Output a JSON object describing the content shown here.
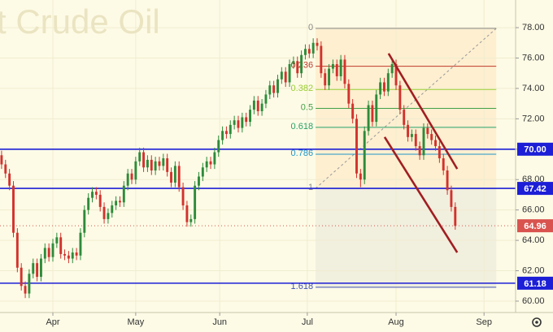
{
  "chart_data": {
    "type": "candlestick",
    "title": "t Crude Oil",
    "colors": {
      "up": "#2e8b3a",
      "down": "#d2322d",
      "level": "#1c1fd6",
      "trend": "#a01e22",
      "price": "#d9534f"
    },
    "open": [
      69.6,
      69.0,
      68.4,
      67.6,
      64.5,
      62.2,
      61.0,
      60.5,
      61.8,
      62.5,
      61.6,
      62.8,
      63.5,
      62.9,
      63.8,
      64.2,
      63.1,
      63.0,
      62.8,
      63.2,
      63.0,
      64.5,
      66.0,
      66.8,
      67.2,
      67.0,
      66.2,
      65.4,
      65.8,
      66.3,
      66.6,
      66.5,
      67.6,
      68.4,
      68.0,
      69.2,
      69.8,
      68.8,
      69.3,
      68.6,
      69.2,
      68.9,
      69.4,
      68.5,
      67.8,
      68.9,
      67.5,
      66.3,
      65.2,
      65.4,
      67.6,
      68.2,
      68.8,
      69.2,
      69.0,
      69.8,
      70.6,
      71.2,
      71.0,
      71.6,
      71.9,
      71.4,
      72.1,
      71.8,
      72.6,
      73.2,
      72.5,
      73.0,
      73.6,
      74.2,
      73.7,
      74.6,
      75.1,
      74.4,
      75.6,
      75.8,
      75.0,
      76.2,
      76.6,
      76.3,
      77.0,
      76.8,
      75.0,
      74.2,
      75.3,
      75.6,
      74.8,
      75.9,
      74.3,
      73.0,
      72.0,
      68.4,
      68.0,
      71.2,
      72.9,
      71.8,
      73.6,
      74.4,
      73.8,
      75.0,
      75.6,
      74.2,
      72.6,
      71.6,
      70.8,
      71.0,
      70.2,
      69.6,
      71.4,
      71.0,
      70.6,
      70.2,
      69.4,
      68.6,
      67.3,
      66.2
    ],
    "high": [
      69.9,
      69.3,
      68.7,
      67.9,
      64.8,
      62.5,
      61.3,
      62.1,
      62.8,
      62.8,
      63.1,
      63.8,
      63.8,
      64.1,
      64.5,
      64.5,
      63.4,
      63.3,
      63.5,
      63.5,
      64.8,
      66.3,
      67.1,
      67.5,
      67.5,
      67.3,
      66.5,
      66.1,
      66.6,
      66.9,
      66.9,
      67.9,
      68.7,
      68.7,
      69.5,
      70.1,
      70.1,
      69.6,
      69.6,
      69.5,
      69.5,
      69.7,
      69.7,
      68.8,
      69.2,
      69.2,
      67.8,
      66.6,
      65.7,
      67.9,
      68.5,
      69.1,
      69.5,
      69.5,
      70.1,
      70.9,
      71.5,
      71.5,
      71.9,
      72.2,
      72.2,
      72.4,
      72.4,
      72.9,
      73.5,
      73.5,
      73.3,
      73.9,
      74.5,
      74.5,
      74.9,
      75.4,
      75.4,
      75.9,
      76.1,
      76.1,
      76.5,
      76.9,
      76.9,
      77.3,
      77.3,
      77.1,
      75.3,
      75.6,
      75.9,
      75.9,
      76.2,
      76.2,
      74.6,
      73.3,
      72.3,
      68.7,
      71.5,
      73.2,
      73.2,
      73.9,
      74.7,
      74.7,
      75.3,
      75.9,
      75.9,
      74.5,
      72.9,
      71.9,
      71.3,
      71.3,
      70.5,
      71.7,
      71.7,
      71.3,
      70.9,
      70.5,
      69.7,
      68.9,
      67.6,
      66.5
    ],
    "low": [
      68.7,
      68.1,
      67.3,
      64.2,
      61.9,
      60.7,
      60.2,
      60.2,
      61.5,
      61.3,
      61.3,
      62.5,
      62.6,
      62.6,
      63.5,
      62.8,
      62.7,
      62.5,
      62.5,
      62.7,
      62.7,
      64.2,
      65.7,
      66.5,
      66.7,
      65.9,
      65.1,
      65.1,
      65.5,
      66.0,
      66.2,
      66.2,
      67.3,
      67.7,
      67.7,
      68.9,
      68.5,
      68.5,
      68.3,
      68.3,
      68.6,
      68.6,
      68.2,
      67.5,
      67.5,
      67.2,
      66.0,
      64.9,
      64.9,
      65.1,
      67.3,
      67.9,
      68.5,
      68.7,
      68.7,
      69.5,
      70.3,
      70.7,
      70.7,
      71.3,
      71.1,
      71.1,
      71.5,
      71.5,
      72.3,
      72.2,
      72.2,
      72.7,
      73.3,
      73.4,
      73.4,
      74.3,
      74.1,
      74.1,
      75.3,
      74.7,
      74.7,
      75.9,
      76.0,
      76.0,
      76.5,
      74.7,
      73.9,
      73.9,
      75.0,
      74.5,
      74.5,
      74.0,
      72.7,
      71.7,
      68.1,
      67.5,
      67.7,
      70.9,
      71.5,
      71.5,
      73.3,
      73.5,
      73.5,
      74.7,
      73.9,
      72.3,
      71.3,
      70.5,
      70.5,
      69.9,
      69.3,
      69.3,
      70.7,
      70.3,
      69.9,
      69.1,
      68.3,
      67.0,
      65.9,
      64.7
    ],
    "close": [
      69.0,
      68.4,
      67.6,
      64.5,
      62.2,
      61.0,
      60.5,
      61.8,
      62.5,
      61.6,
      62.8,
      63.5,
      62.9,
      63.8,
      64.2,
      63.1,
      63.0,
      62.8,
      63.2,
      63.0,
      64.5,
      66.0,
      66.8,
      67.2,
      67.0,
      66.2,
      65.4,
      65.8,
      66.3,
      66.6,
      66.5,
      67.6,
      68.4,
      68.0,
      69.2,
      69.8,
      68.8,
      69.3,
      68.6,
      69.2,
      68.9,
      69.4,
      68.5,
      67.8,
      68.9,
      67.5,
      66.3,
      65.2,
      65.4,
      67.6,
      68.2,
      68.8,
      69.2,
      69.0,
      69.8,
      70.6,
      71.2,
      71.0,
      71.6,
      71.9,
      71.4,
      72.1,
      71.8,
      72.6,
      73.2,
      72.5,
      73.0,
      73.6,
      74.2,
      73.7,
      74.6,
      75.1,
      74.4,
      75.6,
      75.8,
      75.0,
      76.2,
      76.6,
      76.3,
      77.0,
      76.8,
      75.0,
      74.2,
      75.3,
      75.6,
      74.8,
      75.9,
      74.3,
      73.0,
      72.0,
      68.4,
      68.0,
      71.2,
      72.9,
      71.8,
      73.6,
      74.4,
      73.8,
      75.0,
      75.6,
      74.2,
      72.6,
      71.6,
      70.8,
      71.0,
      70.2,
      69.6,
      71.4,
      71.0,
      70.6,
      70.2,
      69.4,
      68.6,
      67.3,
      66.2,
      64.96
    ],
    "xlim": [
      -0.4,
      130.3
    ],
    "xticks": [
      {
        "value": 13,
        "label": "Apr"
      },
      {
        "value": 34,
        "label": "May"
      },
      {
        "value": 55.3,
        "label": "Jun"
      },
      {
        "value": 77.5,
        "label": "Jul"
      },
      {
        "value": 100,
        "label": "Aug"
      },
      {
        "value": 122.3,
        "label": "Sep"
      }
    ],
    "ylim": [
      59.25,
      79.82
    ],
    "yticks": [
      {
        "value": 60,
        "label": "60.00"
      },
      {
        "value": 62,
        "label": "62.00"
      },
      {
        "value": 64,
        "label": "64.00"
      },
      {
        "value": 66,
        "label": "66.00"
      },
      {
        "value": 68,
        "label": "68.00"
      },
      {
        "value": 70,
        "label": "70.00"
      },
      {
        "value": 72,
        "label": "72.00"
      },
      {
        "value": 74,
        "label": "74.00"
      },
      {
        "value": 76,
        "label": "76.00"
      },
      {
        "value": 78,
        "label": "78.00"
      }
    ],
    "grid": true,
    "levels": [
      {
        "value": 70,
        "label": "70.00"
      },
      67.42,
      61.18
    ],
    "fib": {
      "x": [
        79.6,
        125.4
      ],
      "levels": [
        {
          "value": 77.95,
          "label": "0",
          "color": "#888888"
        },
        {
          "value": 75.46,
          "label": "0.236",
          "color": "#c0392b"
        },
        {
          "value": 73.93,
          "label": "0.382",
          "color": "#9acd32"
        },
        {
          "value": 72.69,
          "label": "0.5",
          "color": "#43a047"
        },
        {
          "value": 71.44,
          "label": "0.618",
          "color": "#26a269"
        },
        {
          "value": 69.67,
          "label": "0.786",
          "color": "#2196c9"
        },
        {
          "value": 67.42,
          "label": "1",
          "color": "#888888"
        },
        {
          "value": 60.91,
          "label": "1.618",
          "color": "#3f51b5"
        }
      ]
    },
    "trendlines": [
      {
        "x": [
          98.1,
          115.5
        ],
        "y": [
          76.3,
          68.7
        ]
      },
      {
        "x": [
          97.1,
          115.5
        ],
        "y": [
          70.8,
          63.2
        ]
      }
    ]
  }
}
